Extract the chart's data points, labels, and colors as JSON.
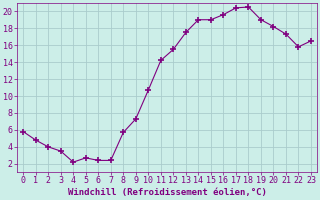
{
  "x": [
    0,
    1,
    2,
    3,
    4,
    5,
    6,
    7,
    8,
    9,
    10,
    11,
    12,
    13,
    14,
    15,
    16,
    17,
    18,
    19,
    20,
    21,
    22,
    23
  ],
  "y": [
    5.8,
    4.8,
    4.0,
    3.5,
    2.2,
    2.7,
    2.4,
    2.4,
    5.7,
    7.3,
    10.7,
    14.2,
    15.5,
    17.5,
    19.0,
    19.0,
    19.6,
    20.4,
    20.5,
    19.0,
    18.2,
    17.3,
    15.8,
    16.5
  ],
  "line_color": "#800080",
  "marker": "+",
  "marker_size": 4,
  "marker_lw": 1.2,
  "bg_color": "#cceee8",
  "grid_color": "#aacccc",
  "xlabel": "Windchill (Refroidissement éolien,°C)",
  "xlim": [
    -0.5,
    23.5
  ],
  "ylim": [
    1,
    21
  ],
  "yticks": [
    2,
    4,
    6,
    8,
    10,
    12,
    14,
    16,
    18,
    20
  ],
  "xticks": [
    0,
    1,
    2,
    3,
    4,
    5,
    6,
    7,
    8,
    9,
    10,
    11,
    12,
    13,
    14,
    15,
    16,
    17,
    18,
    19,
    20,
    21,
    22,
    23
  ],
  "tick_color": "#800080",
  "label_color": "#800080",
  "label_fontsize": 6.5,
  "tick_fontsize": 6.0
}
